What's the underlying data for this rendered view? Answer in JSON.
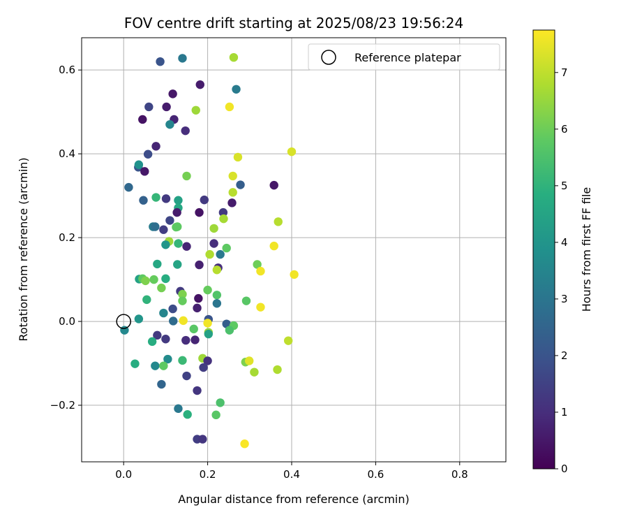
{
  "chart_data": {
    "type": "scatter",
    "title": "FOV centre drift starting at 2025/08/23 19:56:24",
    "xlabel": "Angular distance from reference (arcmin)",
    "ylabel": "Rotation from reference (arcmin)",
    "xlim": [
      -0.1,
      0.91
    ],
    "ylim": [
      -0.335,
      0.677
    ],
    "xticks": [
      0.0,
      0.2,
      0.4,
      0.6,
      0.8
    ],
    "xtick_labels": [
      "0.0",
      "0.2",
      "0.4",
      "0.6",
      "0.8"
    ],
    "yticks": [
      -0.2,
      0.0,
      0.2,
      0.4,
      0.6
    ],
    "ytick_labels": [
      "−0.2",
      "0.0",
      "0.2",
      "0.4",
      "0.6"
    ],
    "grid": true,
    "legend": {
      "position": "top-right",
      "entries": [
        "Reference platepar"
      ]
    },
    "reference_point": {
      "x": 0.0,
      "y": 0.0,
      "name": "Reference platepar"
    },
    "colorbar": {
      "label": "Hours from first FF file",
      "colormap": "viridis",
      "range": [
        0,
        7.75
      ],
      "ticks": [
        0,
        1,
        2,
        3,
        4,
        5,
        6,
        7
      ],
      "tick_labels": [
        "0",
        "1",
        "2",
        "3",
        "4",
        "5",
        "6",
        "7"
      ]
    },
    "points": [
      [
        0.087,
        0.62,
        2.0
      ],
      [
        0.14,
        0.628,
        3.1
      ],
      [
        0.262,
        0.63,
        6.7
      ],
      [
        0.182,
        0.565,
        0.6
      ],
      [
        0.117,
        0.543,
        0.5
      ],
      [
        0.268,
        0.554,
        3.2
      ],
      [
        0.06,
        0.512,
        1.6
      ],
      [
        0.102,
        0.512,
        0.6
      ],
      [
        0.252,
        0.512,
        7.6
      ],
      [
        0.172,
        0.504,
        6.6
      ],
      [
        0.045,
        0.482,
        0.4
      ],
      [
        0.12,
        0.482,
        0.8
      ],
      [
        0.11,
        0.47,
        3.5
      ],
      [
        0.147,
        0.455,
        1.0
      ],
      [
        0.077,
        0.418,
        0.8
      ],
      [
        0.058,
        0.399,
        1.8
      ],
      [
        0.272,
        0.392,
        7.3
      ],
      [
        0.4,
        0.405,
        7.3
      ],
      [
        0.035,
        0.368,
        2.0
      ],
      [
        0.036,
        0.374,
        3.9
      ],
      [
        0.05,
        0.358,
        0.5
      ],
      [
        0.15,
        0.347,
        6.1
      ],
      [
        0.26,
        0.347,
        7.3
      ],
      [
        0.358,
        0.325,
        0.5
      ],
      [
        0.278,
        0.326,
        2.3
      ],
      [
        0.012,
        0.32,
        2.6
      ],
      [
        0.26,
        0.308,
        6.9
      ],
      [
        0.077,
        0.296,
        5.1
      ],
      [
        0.101,
        0.293,
        1.3
      ],
      [
        0.13,
        0.289,
        4.4
      ],
      [
        0.192,
        0.29,
        1.3
      ],
      [
        0.047,
        0.289,
        2.4
      ],
      [
        0.258,
        0.283,
        0.6
      ],
      [
        0.13,
        0.271,
        4.6
      ],
      [
        0.127,
        0.26,
        0.6
      ],
      [
        0.18,
        0.26,
        0.4
      ],
      [
        0.237,
        0.26,
        1.3
      ],
      [
        0.238,
        0.245,
        6.7
      ],
      [
        0.11,
        0.241,
        1.6
      ],
      [
        0.07,
        0.226,
        3.2
      ],
      [
        0.075,
        0.226,
        2.8
      ],
      [
        0.128,
        0.226,
        5.8
      ],
      [
        0.125,
        0.225,
        5.8
      ],
      [
        0.095,
        0.219,
        1.4
      ],
      [
        0.368,
        0.238,
        6.9
      ],
      [
        0.215,
        0.222,
        6.6
      ],
      [
        0.108,
        0.191,
        6.6
      ],
      [
        0.13,
        0.186,
        5.1
      ],
      [
        0.215,
        0.186,
        1.0
      ],
      [
        0.1,
        0.183,
        4.0
      ],
      [
        0.15,
        0.179,
        0.8
      ],
      [
        0.245,
        0.175,
        5.8
      ],
      [
        0.358,
        0.18,
        7.6
      ],
      [
        0.205,
        0.16,
        6.8
      ],
      [
        0.23,
        0.16,
        3.1
      ],
      [
        0.08,
        0.137,
        4.6
      ],
      [
        0.128,
        0.136,
        4.5
      ],
      [
        0.18,
        0.135,
        0.7
      ],
      [
        0.318,
        0.136,
        6.0
      ],
      [
        0.225,
        0.128,
        1.0
      ],
      [
        0.222,
        0.123,
        6.9
      ],
      [
        0.326,
        0.12,
        7.6
      ],
      [
        0.406,
        0.112,
        7.6
      ],
      [
        0.037,
        0.101,
        4.4
      ],
      [
        0.045,
        0.102,
        5.8
      ],
      [
        0.052,
        0.097,
        6.2
      ],
      [
        0.072,
        0.1,
        5.9
      ],
      [
        0.1,
        0.102,
        4.8
      ],
      [
        0.09,
        0.08,
        6.1
      ],
      [
        0.135,
        0.072,
        1.3
      ],
      [
        0.14,
        0.065,
        6.2
      ],
      [
        0.2,
        0.075,
        5.9
      ],
      [
        0.222,
        0.063,
        5.6
      ],
      [
        0.055,
        0.052,
        5.0
      ],
      [
        0.14,
        0.049,
        5.9
      ],
      [
        0.178,
        0.055,
        0.4
      ],
      [
        0.292,
        0.049,
        5.7
      ],
      [
        0.222,
        0.043,
        3.0
      ],
      [
        0.117,
        0.03,
        1.8
      ],
      [
        0.175,
        0.032,
        0.7
      ],
      [
        0.326,
        0.034,
        7.6
      ],
      [
        0.095,
        0.02,
        3.5
      ],
      [
        0.036,
        0.006,
        4.0
      ],
      [
        0.118,
        0.001,
        2.7
      ],
      [
        0.142,
        0.002,
        7.6
      ],
      [
        0.202,
        0.005,
        2.0
      ],
      [
        0.2,
        -0.004,
        7.6
      ],
      [
        0.245,
        -0.006,
        2.3
      ],
      [
        0.262,
        -0.01,
        5.8
      ],
      [
        0.002,
        -0.021,
        3.6
      ],
      [
        0.167,
        -0.018,
        5.7
      ],
      [
        0.202,
        -0.026,
        6.6
      ],
      [
        0.252,
        -0.021,
        5.5
      ],
      [
        0.202,
        -0.03,
        4.4
      ],
      [
        0.08,
        -0.033,
        1.3
      ],
      [
        0.1,
        -0.042,
        1.3
      ],
      [
        0.148,
        -0.045,
        1.0
      ],
      [
        0.17,
        -0.044,
        0.8
      ],
      [
        0.068,
        -0.048,
        4.8
      ],
      [
        0.392,
        -0.046,
        7.0
      ],
      [
        0.188,
        -0.088,
        6.6
      ],
      [
        0.2,
        -0.094,
        1.1
      ],
      [
        0.29,
        -0.097,
        6.2
      ],
      [
        0.299,
        -0.094,
        7.4
      ],
      [
        0.105,
        -0.09,
        3.7
      ],
      [
        0.14,
        -0.093,
        5.2
      ],
      [
        0.027,
        -0.101,
        4.8
      ],
      [
        0.075,
        -0.106,
        3.6
      ],
      [
        0.095,
        -0.106,
        5.8
      ],
      [
        0.19,
        -0.11,
        1.4
      ],
      [
        0.311,
        -0.121,
        6.7
      ],
      [
        0.366,
        -0.115,
        6.8
      ],
      [
        0.15,
        -0.13,
        1.5
      ],
      [
        0.09,
        -0.15,
        2.5
      ],
      [
        0.175,
        -0.165,
        1.2
      ],
      [
        0.23,
        -0.194,
        5.5
      ],
      [
        0.13,
        -0.208,
        3.1
      ],
      [
        0.152,
        -0.222,
        4.9
      ],
      [
        0.22,
        -0.223,
        5.7
      ],
      [
        0.175,
        -0.281,
        1.4
      ],
      [
        0.188,
        -0.281,
        1.2
      ],
      [
        0.288,
        -0.292,
        7.7
      ]
    ]
  }
}
